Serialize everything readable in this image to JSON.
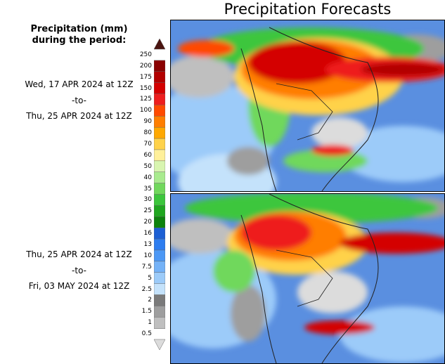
{
  "title": "Precipitation Forecasts",
  "legend": {
    "title_line1": "Precipitation (mm)",
    "title_line2": "during the period:",
    "unit": "mm",
    "levels": [
      "250",
      "200",
      "175",
      "150",
      "125",
      "100",
      "90",
      "80",
      "70",
      "60",
      "50",
      "40",
      "35",
      "30",
      "25",
      "20",
      "16",
      "13",
      "10",
      "7.5",
      "5",
      "2.5",
      "2",
      "1.5",
      "1",
      "0.5"
    ],
    "colors": [
      "#4a1410",
      "#8b0000",
      "#b30000",
      "#d40000",
      "#ee1e1e",
      "#ff4a00",
      "#ff7e00",
      "#ffa800",
      "#ffd24a",
      "#fff09a",
      "#d8f5b0",
      "#a8eb8e",
      "#70d85c",
      "#3cc63c",
      "#1fa61f",
      "#0c820c",
      "#1c5fd4",
      "#2d7df0",
      "#4c98f5",
      "#74b2f7",
      "#9ccbf9",
      "#c4e2fb",
      "#7a7a7a",
      "#9e9e9e",
      "#bfbfbf",
      "#dcdcdc"
    ]
  },
  "panels": [
    {
      "start": "Wed, 17 APR 2024 at 12Z",
      "sep": "-to-",
      "end": "Thu, 25 APR 2024 at 12Z"
    },
    {
      "start": "Thu, 25 APR 2024 at 12Z",
      "sep": "-to-",
      "end": "Fri, 03 MAY 2024 at 12Z"
    }
  ]
}
